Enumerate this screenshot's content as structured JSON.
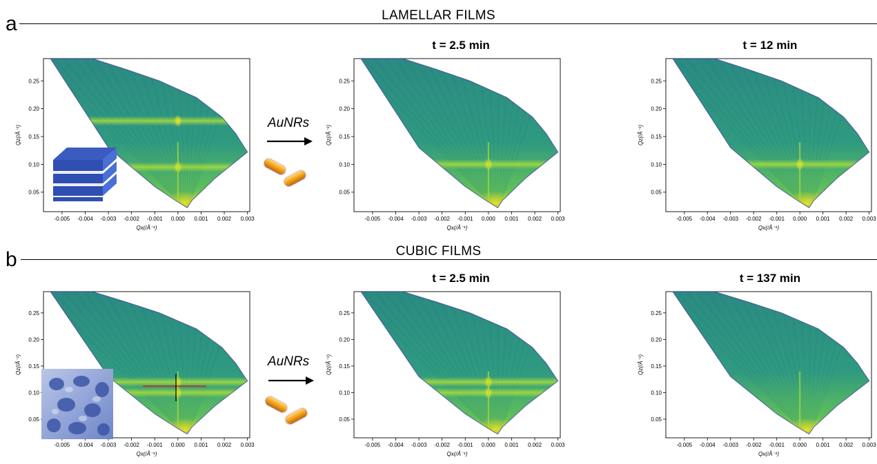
{
  "figure": {
    "section_a": {
      "letter": "a",
      "title": "LAMELLAR FILMS"
    },
    "section_b": {
      "letter": "b",
      "title": "CUBIC FILMS"
    },
    "agent_label": "AuNRs",
    "time_labels": {
      "a2": "t = 2.5 min",
      "a3": "t = 12 min",
      "b2": "t = 2.5 min",
      "b3": "t = 137 min"
    },
    "inset_icons": {
      "lamellar": "lamellar-structure-icon",
      "cubic": "cubic-gyroid-structure-icon",
      "nanorod": "gold-nanorod-icon"
    }
  },
  "chart_data": [
    {
      "id": "a1",
      "type": "heatmap",
      "xlabel": "Qx(/Å⁻¹)",
      "ylabel": "Qz(/Å⁻¹)",
      "x_ticks": [
        "-0.005",
        "-0.004",
        "-0.003",
        "-0.002",
        "-0.001",
        "0.000",
        "0.001",
        "0.002",
        "0.003"
      ],
      "y_ticks": [
        "0.05",
        "0.10",
        "0.15",
        "0.20",
        "0.25"
      ],
      "xlim": [
        -0.0058,
        0.0031
      ],
      "ylim": [
        0.015,
        0.29
      ],
      "peaks_qz": [
        0.095,
        0.178
      ],
      "colors": {
        "base": "#2a8a82",
        "bright": "#a8dc3c",
        "peak": "#f5e81e"
      }
    },
    {
      "id": "a2",
      "type": "heatmap",
      "xlabel": "Qx(/Å⁻¹)",
      "ylabel": "Qz(/Å⁻¹)",
      "x_ticks": [
        "-0.005",
        "-0.004",
        "-0.003",
        "-0.002",
        "-0.001",
        "0.000",
        "0.001",
        "0.002",
        "0.003"
      ],
      "y_ticks": [
        "0.05",
        "0.10",
        "0.15",
        "0.20",
        "0.25"
      ],
      "xlim": [
        -0.0058,
        0.0031
      ],
      "ylim": [
        0.015,
        0.29
      ],
      "peaks_qz": [
        0.1
      ],
      "colors": {
        "base": "#2a8a82",
        "bright": "#a8dc3c",
        "peak": "#f5e81e"
      }
    },
    {
      "id": "a3",
      "type": "heatmap",
      "xlabel": "Qx(/Å⁻¹)",
      "ylabel": "Qz(/Å⁻¹)",
      "x_ticks": [
        "-0.005",
        "-0.004",
        "-0.003",
        "-0.002",
        "-0.001",
        "0.000",
        "0.001",
        "0.002",
        "0.003"
      ],
      "y_ticks": [
        "0.05",
        "0.10",
        "0.15",
        "0.20",
        "0.25"
      ],
      "xlim": [
        -0.0058,
        0.0031
      ],
      "ylim": [
        0.015,
        0.29
      ],
      "peaks_qz": [
        0.1
      ],
      "colors": {
        "base": "#2a8a82",
        "bright": "#a8dc3c",
        "peak": "#f5e81e"
      }
    },
    {
      "id": "b1",
      "type": "heatmap",
      "xlabel": "Qx(/Å⁻¹)",
      "ylabel": "Qz(/Å⁻¹)",
      "x_ticks": [
        "-0.005",
        "-0.004",
        "-0.003",
        "-0.002",
        "-0.001",
        "0.000",
        "0.001",
        "0.002",
        "0.003"
      ],
      "y_ticks": [
        "0.05",
        "0.10",
        "0.15",
        "0.20",
        "0.25"
      ],
      "xlim": [
        -0.0058,
        0.0031
      ],
      "ylim": [
        0.015,
        0.29
      ],
      "peaks_qz": [
        0.12,
        0.1
      ],
      "colors": {
        "base": "#2a8a82",
        "bright": "#a8dc3c",
        "peak": "#f5e81e"
      }
    },
    {
      "id": "b2",
      "type": "heatmap",
      "xlabel": "Qx(/Å⁻¹)",
      "ylabel": "Qz(/Å⁻¹)",
      "x_ticks": [
        "-0.005",
        "-0.004",
        "-0.003",
        "-0.002",
        "-0.001",
        "0.000",
        "0.001",
        "0.002",
        "0.003"
      ],
      "y_ticks": [
        "0.05",
        "0.10",
        "0.15",
        "0.20",
        "0.25"
      ],
      "xlim": [
        -0.0058,
        0.0031
      ],
      "ylim": [
        0.015,
        0.29
      ],
      "peaks_qz": [
        0.12,
        0.1
      ],
      "colors": {
        "base": "#2a8a82",
        "bright": "#a8dc3c",
        "peak": "#f5e81e"
      }
    },
    {
      "id": "b3",
      "type": "heatmap",
      "xlabel": "Qx(/Å⁻¹)",
      "ylabel": "Qz(/Å⁻¹)",
      "x_ticks": [
        "-0.005",
        "-0.004",
        "-0.003",
        "-0.002",
        "-0.001",
        "0.000",
        "0.001",
        "0.002",
        "0.003"
      ],
      "y_ticks": [
        "0.05",
        "0.10",
        "0.15",
        "0.20",
        "0.25"
      ],
      "xlim": [
        -0.0058,
        0.0031
      ],
      "ylim": [
        0.015,
        0.29
      ],
      "peaks_qz": [],
      "colors": {
        "base": "#2a8a82",
        "bright": "#a8dc3c",
        "peak": "#f5e81e"
      }
    }
  ]
}
